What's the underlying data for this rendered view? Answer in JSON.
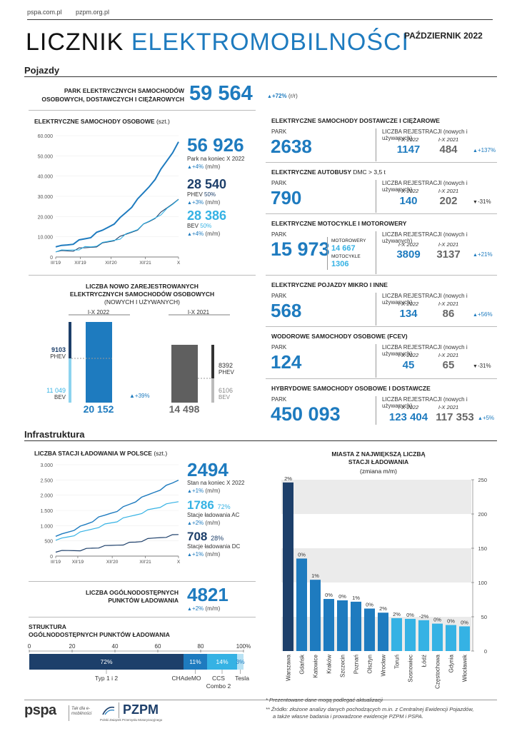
{
  "header": {
    "link1": "pspa.com.pl",
    "link2": "pzpm.org.pl",
    "title1": "LICZNIK",
    "title2": "ELEKTROMOBILNOŚCI",
    "date": "PAŹDZIERNIK 2022"
  },
  "vehicles": {
    "section": "Pojazdy",
    "fleet_label1": "PARK ELEKTRYCZNYCH SAMOCHODÓW",
    "fleet_label2": "OSOBOWYCH, DOSTAWCZYCH I CIĘŻAROWYCH",
    "fleet_value": "59 564",
    "fleet_change": "+72%",
    "fleet_change_unit": "(r/r)",
    "cars_title": "ELEKTRYCZNE SAMOCHODY OSOBOWE",
    "cars_unit": "(szt.)",
    "total_value": "56 926",
    "total_label": "Park na koniec X 2022",
    "total_change": "+4%",
    "total_unit": "(m/m)",
    "phev_value": "28 540",
    "phev_label": "PHEV",
    "phev_share": "50%",
    "phev_change": "+3%",
    "phev_unit": "(m/m)",
    "bev_value": "28 386",
    "bev_label": "BEV",
    "bev_share": "50%",
    "bev_change": "+4%",
    "bev_unit": "(m/m)",
    "reg_title1": "LICZBA NOWO ZAREJESTROWANYCH",
    "reg_title2": "ELEKTRYCZNYCH SAMOCHODÓW OSOBOWYCH",
    "reg_title3": "(NOWYCH I UŻYWANYCH)",
    "reg_p1": "I-X 2022",
    "reg_p2": "I-X 2021",
    "reg_phev_2022": "9103",
    "reg_bev_2022": "11 049",
    "reg_total_2022": "20 152",
    "reg_change": "+39%",
    "reg_phev_2021": "8392",
    "reg_bev_2021": "6106",
    "reg_total_2021": "14 498",
    "lbl_phev": "PHEV",
    "lbl_bev": "BEV"
  },
  "categories": [
    {
      "title": "ELEKTRYCZNE SAMOCHODY DOSTAWCZE I CIĘŻAROWE",
      "title_suffix": "",
      "park_label": "PARK",
      "park": "2638",
      "reg_label": "LICZBA REJESTRACJI",
      "reg_suffix": "(nowych i używanych)",
      "p1": "I-X 2022",
      "p2": "I-X 2021",
      "v1": "1147",
      "v2": "484",
      "change": "+137%",
      "dir": "up"
    },
    {
      "title": "ELEKTRYCZNE AUTOBUSY",
      "title_suffix": "DMC > 3,5 t",
      "park_label": "PARK",
      "park": "790",
      "reg_label": "LICZBA REJESTRACJI",
      "reg_suffix": "(nowych i używanych)",
      "p1": "I-X 2022",
      "p2": "I-X 2021",
      "v1": "140",
      "v2": "202",
      "change": "-31%",
      "dir": "down"
    },
    {
      "title": "ELEKTRYCZNE MOTOCYKLE I MOTOROWERY",
      "title_suffix": "",
      "park_label": "PARK",
      "park": "15 973",
      "reg_label": "LICZBA REJESTRACJI",
      "reg_suffix": "(nowych i używanych)",
      "p1": "I-X 2022",
      "p2": "I-X 2021",
      "v1": "3809",
      "v2": "3137",
      "change": "+21%",
      "dir": "up",
      "sub1_label": "MOTOROWERY",
      "sub1": "14 667",
      "sub2_label": "MOTOCYKLE",
      "sub2": "1306"
    },
    {
      "title": "ELEKTRYCZNE POJAZDY MIKRO I INNE",
      "title_suffix": "",
      "park_label": "PARK",
      "park": "568",
      "reg_label": "LICZBA REJESTRACJI",
      "reg_suffix": "(nowych i używanych)",
      "p1": "I-X 2022",
      "p2": "I-X 2021",
      "v1": "134",
      "v2": "86",
      "change": "+56%",
      "dir": "up"
    },
    {
      "title": "WODOROWE SAMOCHODY OSOBOWE (FCEV)",
      "title_suffix": "",
      "park_label": "PARK",
      "park": "124",
      "reg_label": "LICZBA REJESTRACJI",
      "reg_suffix": "(nowych i używanych)",
      "p1": "I-X 2022",
      "p2": "I-X 2021",
      "v1": "45",
      "v2": "65",
      "change": "-31%",
      "dir": "down"
    },
    {
      "title": "HYBRYDOWE SAMOCHODY OSOBOWE I DOSTAWCZE",
      "title_suffix": "",
      "park_label": "PARK",
      "park": "450 093",
      "reg_label": "LICZBA REJESTRACJI",
      "reg_suffix": "(nowych i używanych)",
      "p1": "I-X 2022",
      "p2": "I-X 2021",
      "v1": "123 404",
      "v2": "117 353",
      "change": "+5%",
      "dir": "up"
    }
  ],
  "infra": {
    "section": "Infrastruktura",
    "stations_title": "LICZBA STACJI ŁADOWANIA W POLSCE",
    "stations_unit": "(szt.)",
    "st_total": "2494",
    "st_total_label": "Stan na koniec X 2022",
    "st_total_change": "+1%",
    "st_unit": "(m/m)",
    "st_ac": "1786",
    "st_ac_share": "72%",
    "st_ac_label": "Stacje ładowania AC",
    "st_ac_change": "+2%",
    "st_dc": "708",
    "st_dc_share": "28%",
    "st_dc_label": "Stacje ładowania DC",
    "st_dc_change": "+1%",
    "points_title1": "LICZBA OGÓLNODOSTĘPNYCH",
    "points_title2": "PUNKTÓW ŁADOWANIA",
    "points_value": "4821",
    "points_change": "+2%",
    "points_unit": "(m/m)",
    "struct_title1": "STRUKTURA",
    "struct_title2": "OGÓLNODOSTĘPNYCH PUNKTÓW ŁADOWANIA",
    "struct_ticks": [
      "0",
      "20",
      "40",
      "60",
      "80",
      "100%"
    ],
    "struct_segments": [
      {
        "label": "72%",
        "name": "Typ 1 i 2",
        "value": 72,
        "color": "#1d3f6a"
      },
      {
        "label": "11%",
        "name": "CHAdeMO",
        "value": 11,
        "color": "#1e7bbf"
      },
      {
        "label": "14%",
        "name": "CCS Combo 2",
        "value": 14,
        "color": "#35b2e4"
      },
      {
        "label": "3%",
        "name": "Tesla",
        "value": 3,
        "color": "#b8e2f4"
      }
    ],
    "seg_name_1": "Typ 1 i 2",
    "seg_name_2": "CHAdeMO",
    "seg_name_3a": "CCS",
    "seg_name_3b": "Combo 2",
    "seg_name_4": "Tesla",
    "cities_title1": "MIASTA Z NAJWIĘKSZĄ LICZBĄ",
    "cities_title2": "STACJI ŁADOWANIA",
    "cities_sub": "(zmiana m/m)"
  },
  "footer": {
    "note1": "* Prezentowane dane mogą podlegać aktualizacji",
    "note2": "** Źródło: złożone analizy danych pochodzących m.in. z Centralnej Ewidencji Pojazdów,",
    "note3": "a także własne badania i prowadzone ewidencje PZPM i PSPA.",
    "logo1": "pspa",
    "logo2": "PZPM",
    "logo2_sub": "Polski Związek Przemysłu Motoryzacyjnego",
    "logo1_sub": "Tak dla e-mobilności"
  },
  "chart_data": [
    {
      "type": "line",
      "title": "ELEKTRYCZNE SAMOCHODY OSOBOWE",
      "ylim": [
        0,
        60000
      ],
      "yticks": [
        0,
        10000,
        20000,
        30000,
        40000,
        50000,
        60000
      ],
      "xticks": [
        "III'19",
        "XII'19",
        "XII'20",
        "XII'21",
        "X"
      ],
      "series": [
        {
          "name": "Park",
          "color": "#1e7bbf",
          "values": [
            5000,
            5500,
            6200,
            7000,
            8000,
            9000,
            10000,
            11500,
            13000,
            15000,
            17000,
            19000,
            22000,
            25000,
            28000,
            31500,
            35000,
            39000,
            43000,
            47500,
            52000,
            56926
          ]
        },
        {
          "name": "PHEV",
          "color": "#1d3f6a",
          "values": [
            2500,
            2700,
            3000,
            3300,
            3800,
            4300,
            5000,
            5700,
            6500,
            7500,
            8500,
            9500,
            11000,
            12500,
            14000,
            15800,
            17500,
            19500,
            21500,
            24000,
            26500,
            28540
          ]
        },
        {
          "name": "BEV",
          "color": "#35b2e4",
          "values": [
            2500,
            2800,
            3200,
            3700,
            4200,
            4700,
            5000,
            5800,
            6500,
            7500,
            8500,
            9500,
            11000,
            12500,
            14000,
            15700,
            17500,
            19500,
            21500,
            23500,
            26000,
            28386
          ]
        }
      ]
    },
    {
      "type": "bar",
      "title": "LICZBA NOWO ZAREJESTROWANYCH ELEKTRYCZNYCH SAMOCHODÓW OSOBOWYCH",
      "categories": [
        "I-X 2022",
        "I-X 2021"
      ],
      "series": [
        {
          "name": "PHEV",
          "values": [
            9103,
            8392
          ]
        },
        {
          "name": "BEV",
          "values": [
            11049,
            6106
          ]
        }
      ],
      "totals": [
        20152,
        14498
      ]
    },
    {
      "type": "line",
      "title": "LICZBA STACJI ŁADOWANIA W POLSCE",
      "ylim": [
        0,
        3000
      ],
      "yticks": [
        0,
        500,
        1000,
        1500,
        2000,
        2500,
        3000
      ],
      "xticks": [
        "III'19",
        "XII'19",
        "XII'20",
        "XII'21",
        "X"
      ],
      "series": [
        {
          "name": "Stan na koniec X 2022",
          "color": "#1e7bbf",
          "values": [
            650,
            720,
            800,
            880,
            960,
            1050,
            1150,
            1250,
            1330,
            1420,
            1500,
            1600,
            1700,
            1800,
            1900,
            2000,
            2100,
            2200,
            2300,
            2400,
            2494
          ]
        },
        {
          "name": "Stacje ładowania AC",
          "color": "#35b2e4",
          "values": [
            520,
            570,
            630,
            690,
            760,
            830,
            900,
            970,
            1030,
            1090,
            1150,
            1220,
            1290,
            1360,
            1430,
            1500,
            1560,
            1620,
            1680,
            1740,
            1786
          ]
        },
        {
          "name": "Stacje ładowania DC",
          "color": "#1d3f6a",
          "values": [
            130,
            150,
            170,
            190,
            210,
            230,
            260,
            290,
            310,
            340,
            370,
            400,
            430,
            460,
            500,
            540,
            580,
            620,
            650,
            680,
            708
          ]
        }
      ]
    },
    {
      "type": "bar",
      "title": "MIASTA Z NAJWIĘKSZĄ LICZBĄ STACJI ŁADOWANIA",
      "ylim": [
        0,
        250
      ],
      "yticks": [
        0,
        50,
        100,
        150,
        200,
        250
      ],
      "categories": [
        "Warszawa",
        "Gdańsk",
        "Katowice",
        "Kraków",
        "Szczecin",
        "Poznań",
        "Olsztyn",
        "Wrocław",
        "Toruń",
        "Sosnowiec",
        "Łódź",
        "Częstochowa",
        "Gdynia",
        "Włocławek"
      ],
      "values": [
        246,
        135,
        104,
        76,
        74,
        72,
        62,
        56,
        48,
        47,
        45,
        40,
        38,
        36
      ],
      "labels": [
        "2%",
        "0%",
        "1%",
        "0%",
        "0%",
        "1%",
        "0%",
        "2%",
        "2%",
        "0%",
        "-2%",
        "0%",
        "0%",
        "0%"
      ],
      "colors": [
        "#1d3f6a",
        "#1e7bbf",
        "#1e7bbf",
        "#1e7bbf",
        "#1e7bbf",
        "#1e7bbf",
        "#1e7bbf",
        "#1e7bbf",
        "#35b2e4",
        "#35b2e4",
        "#35b2e4",
        "#35b2e4",
        "#35b2e4",
        "#35b2e4"
      ]
    }
  ]
}
